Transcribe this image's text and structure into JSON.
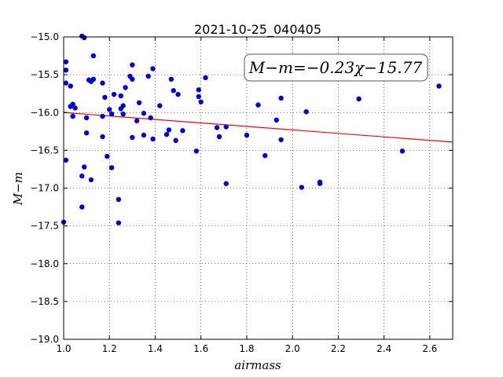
{
  "chart_data": {
    "type": "scatter",
    "title": "2021-10-25_040405",
    "xlabel": "airmass",
    "ylabel": "M−m",
    "xlim": [
      1.0,
      2.7
    ],
    "ylim": [
      -19.0,
      -15.0
    ],
    "y_inverted": true,
    "grid": true,
    "x_ticks": [
      "1.0",
      "1.2",
      "1.4",
      "1.6",
      "1.8",
      "2.0",
      "2.2",
      "2.4",
      "2.6"
    ],
    "y_ticks": [
      "−15.0",
      "−15.5",
      "−16.0",
      "−16.5",
      "−17.0",
      "−17.5",
      "−18.0",
      "−18.5",
      "−19.0"
    ],
    "annotation": "M−m=−0.23χ−15.77",
    "fit_line": {
      "slope": -0.23,
      "intercept": -15.77,
      "color": "#ff0000"
    },
    "point_color": "#0000cc",
    "points": [
      [
        1.01,
        -15.33
      ],
      [
        1.01,
        -15.44
      ],
      [
        1.01,
        -15.61
      ],
      [
        1.01,
        -16.63
      ],
      [
        1.0,
        -17.45
      ],
      [
        1.03,
        -15.65
      ],
      [
        1.03,
        -15.92
      ],
      [
        1.04,
        -15.89
      ],
      [
        1.04,
        -16.05
      ],
      [
        1.05,
        -15.94
      ],
      [
        1.08,
        -14.99
      ],
      [
        1.09,
        -15.01
      ],
      [
        1.09,
        -16.72
      ],
      [
        1.08,
        -16.84
      ],
      [
        1.08,
        -17.25
      ],
      [
        1.1,
        -16.07
      ],
      [
        1.1,
        -16.27
      ],
      [
        1.11,
        -15.57
      ],
      [
        1.12,
        -15.59
      ],
      [
        1.13,
        -15.56
      ],
      [
        1.12,
        -16.89
      ],
      [
        1.13,
        -15.25
      ],
      [
        1.17,
        -15.61
      ],
      [
        1.17,
        -16.05
      ],
      [
        1.17,
        -16.32
      ],
      [
        1.18,
        -15.8
      ],
      [
        1.19,
        -16.58
      ],
      [
        1.2,
        -15.96
      ],
      [
        1.21,
        -16.02
      ],
      [
        1.21,
        -16.73
      ],
      [
        1.22,
        -15.76
      ],
      [
        1.24,
        -17.15
      ],
      [
        1.24,
        -17.46
      ],
      [
        1.25,
        -15.78
      ],
      [
        1.25,
        -15.95
      ],
      [
        1.26,
        -15.91
      ],
      [
        1.26,
        -16.02
      ],
      [
        1.27,
        -15.67
      ],
      [
        1.29,
        -15.52
      ],
      [
        1.3,
        -15.56
      ],
      [
        1.3,
        -15.37
      ],
      [
        1.3,
        -16.33
      ],
      [
        1.32,
        -16.11
      ],
      [
        1.33,
        -15.87
      ],
      [
        1.35,
        -16.01
      ],
      [
        1.35,
        -16.3
      ],
      [
        1.37,
        -15.52
      ],
      [
        1.38,
        -16.07
      ],
      [
        1.39,
        -15.42
      ],
      [
        1.39,
        -16.35
      ],
      [
        1.42,
        -15.91
      ],
      [
        1.45,
        -16.29
      ],
      [
        1.46,
        -16.23
      ],
      [
        1.47,
        -15.56
      ],
      [
        1.48,
        -15.71
      ],
      [
        1.49,
        -16.37
      ],
      [
        1.5,
        -15.76
      ],
      [
        1.52,
        -16.24
      ],
      [
        1.58,
        -16.51
      ],
      [
        1.59,
        -15.79
      ],
      [
        1.59,
        -15.7
      ],
      [
        1.6,
        -15.86
      ],
      [
        1.62,
        -15.54
      ],
      [
        1.67,
        -16.2
      ],
      [
        1.68,
        -16.32
      ],
      [
        1.71,
        -16.19
      ],
      [
        1.71,
        -16.94
      ],
      [
        1.8,
        -16.3
      ],
      [
        1.85,
        -15.9
      ],
      [
        1.88,
        -16.57
      ],
      [
        1.93,
        -16.1
      ],
      [
        1.95,
        -15.81
      ],
      [
        1.95,
        -16.36
      ],
      [
        2.04,
        -16.99
      ],
      [
        2.06,
        -15.99
      ],
      [
        2.12,
        -16.94
      ],
      [
        2.12,
        -16.92
      ],
      [
        2.29,
        -15.82
      ],
      [
        2.48,
        -16.51
      ],
      [
        2.64,
        -15.65
      ]
    ]
  }
}
